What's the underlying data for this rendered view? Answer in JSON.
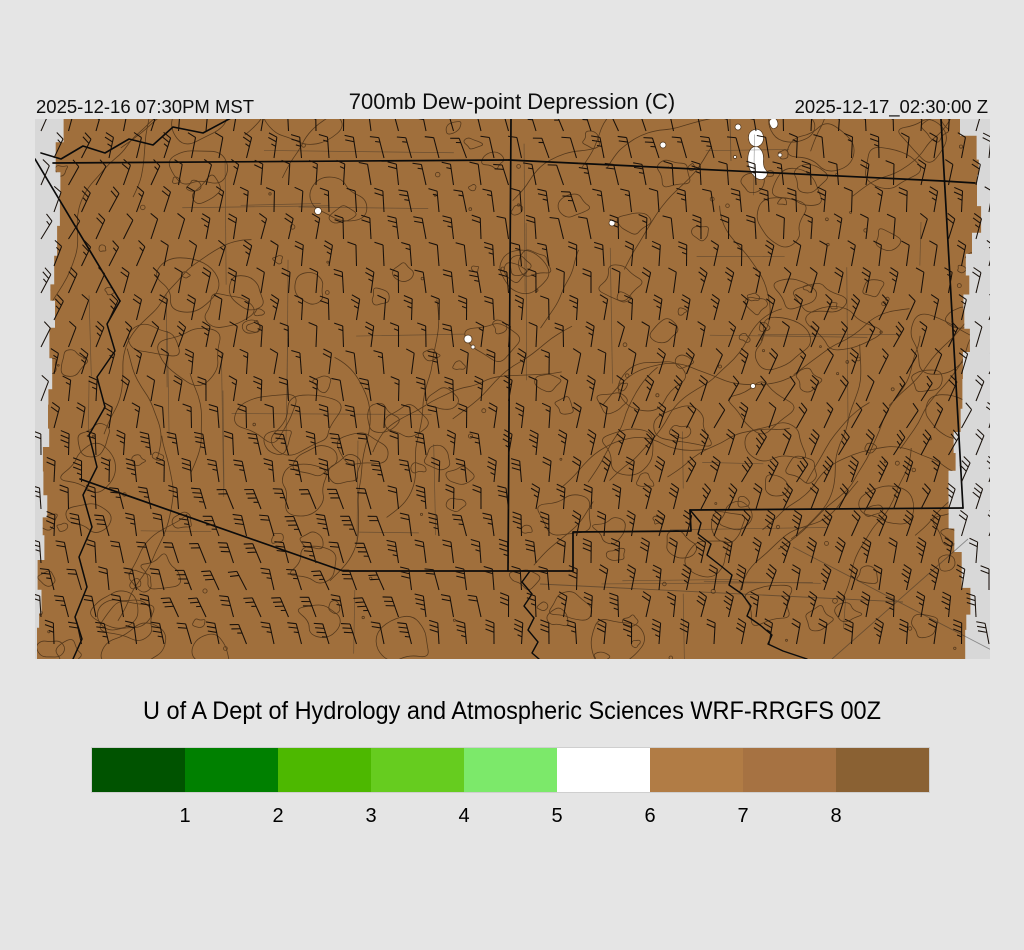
{
  "header": {
    "valid_local": "2025-12-16 07:30PM MST",
    "title": "700mb Dew-point Depression (C)",
    "valid_utc": "2025-12-17_02:30:00 Z"
  },
  "caption": "U of A Dept of Hydrology and Atmospheric Sciences WRF-RRGFS 00Z",
  "colorbar": {
    "tick_labels": [
      "1",
      "2",
      "3",
      "4",
      "5",
      "6",
      "7",
      "8"
    ],
    "segment_colors": [
      "#005300",
      "#008000",
      "#4DB800",
      "#66CC1F",
      "#7CE96A",
      "#FFFFFF",
      "#B17C45",
      "#A67242",
      "#8A6133"
    ]
  },
  "map": {
    "land_fill": "#A06F3C",
    "background": "#D8D8D8",
    "contour_color": "#4E341A",
    "boundary_color": "#0B0B0B",
    "county_color": "#222222",
    "barb_color": "#18100A",
    "cloud_patch_color": "#FFFFFF"
  },
  "chart_data": {
    "type": "heatmap",
    "title": "700mb Dew-point Depression (C)",
    "units": "C",
    "level": "700mb",
    "model": "WRF-RRGFS 00Z",
    "source": "U of A Dept of Hydrology and Atmospheric Sciences",
    "valid_time_local": "2025-12-16 07:30PM MST",
    "valid_time_utc": "2025-12-17_02:30:00 Z",
    "legend_position": "bottom",
    "colorbar_tick_values": [
      1,
      2,
      3,
      4,
      5,
      6,
      7,
      8
    ],
    "colorbar_colors": [
      "#005300",
      "#008000",
      "#4DB800",
      "#66CC1F",
      "#7CE96A",
      "#FFFFFF",
      "#B17C45",
      "#A67242",
      "#8A6133"
    ],
    "field_summary": "Nearly the entire Arizona / New Mexico model domain is shaded brown (dew-point depression about 7-8+ C); a few small white patches (5-6 C) appear in north-central New Mexico; wind barbs indicate generally south to southwest flow."
  }
}
